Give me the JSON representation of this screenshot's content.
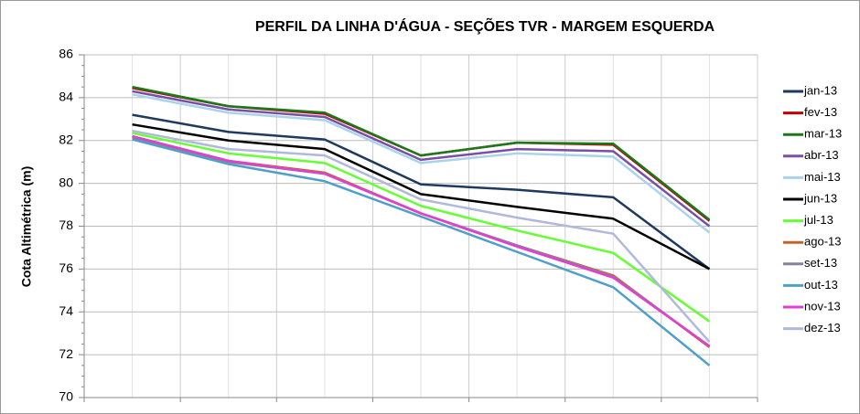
{
  "chart_data": {
    "type": "line",
    "title": "PERFIL DA LINHA D'ÁGUA - SEÇÕES TVR - MARGEM ESQUERDA",
    "y_label": "Cota  Altimétrica (m)",
    "categories": [
      null,
      null,
      null,
      null,
      null,
      null,
      null
    ],
    "ylim": [
      70,
      86
    ],
    "yticks": [
      70,
      72,
      74,
      76,
      78,
      80,
      82,
      84,
      86
    ],
    "grid": true,
    "legend": "right",
    "series": [
      {
        "name": "jan-13",
        "color": "#1f3a5f",
        "values": [
          83.2,
          82.4,
          82.05,
          79.95,
          79.7,
          79.35,
          76.0
        ]
      },
      {
        "name": "fev-13",
        "color": "#c00000",
        "values": [
          84.45,
          83.6,
          83.25,
          81.3,
          81.9,
          81.8,
          78.25
        ]
      },
      {
        "name": "mar-13",
        "color": "#1a7a1a",
        "values": [
          84.5,
          83.6,
          83.3,
          81.3,
          81.9,
          81.85,
          78.3
        ]
      },
      {
        "name": "abr-13",
        "color": "#7b4fa8",
        "values": [
          84.3,
          83.45,
          83.1,
          81.1,
          81.6,
          81.5,
          78.0
        ]
      },
      {
        "name": "mai-13",
        "color": "#a8d3ea",
        "values": [
          84.15,
          83.3,
          82.95,
          80.95,
          81.4,
          81.25,
          77.7
        ]
      },
      {
        "name": "jun-13",
        "color": "#000000",
        "values": [
          82.75,
          82.0,
          81.6,
          79.5,
          78.9,
          78.35,
          76.0
        ]
      },
      {
        "name": "jul-13",
        "color": "#66ff33",
        "values": [
          82.35,
          81.4,
          80.95,
          78.95,
          77.8,
          76.75,
          73.55
        ]
      },
      {
        "name": "ago-13",
        "color": "#c0662a",
        "values": [
          82.2,
          81.05,
          80.5,
          78.6,
          77.1,
          75.7,
          72.35
        ]
      },
      {
        "name": "set-13",
        "color": "#8a7fa0",
        "values": [
          82.15,
          81.0,
          80.45,
          78.6,
          77.1,
          75.65,
          72.4
        ]
      },
      {
        "name": "out-13",
        "color": "#4fa0c8",
        "values": [
          82.05,
          80.9,
          80.1,
          78.45,
          76.8,
          75.15,
          71.5
        ]
      },
      {
        "name": "nov-13",
        "color": "#e040d0",
        "values": [
          82.2,
          81.05,
          80.45,
          78.6,
          77.05,
          75.6,
          72.4
        ]
      },
      {
        "name": "dez-13",
        "color": "#b0b8dc",
        "values": [
          82.45,
          81.6,
          81.3,
          79.25,
          78.4,
          77.65,
          72.6
        ]
      }
    ]
  }
}
